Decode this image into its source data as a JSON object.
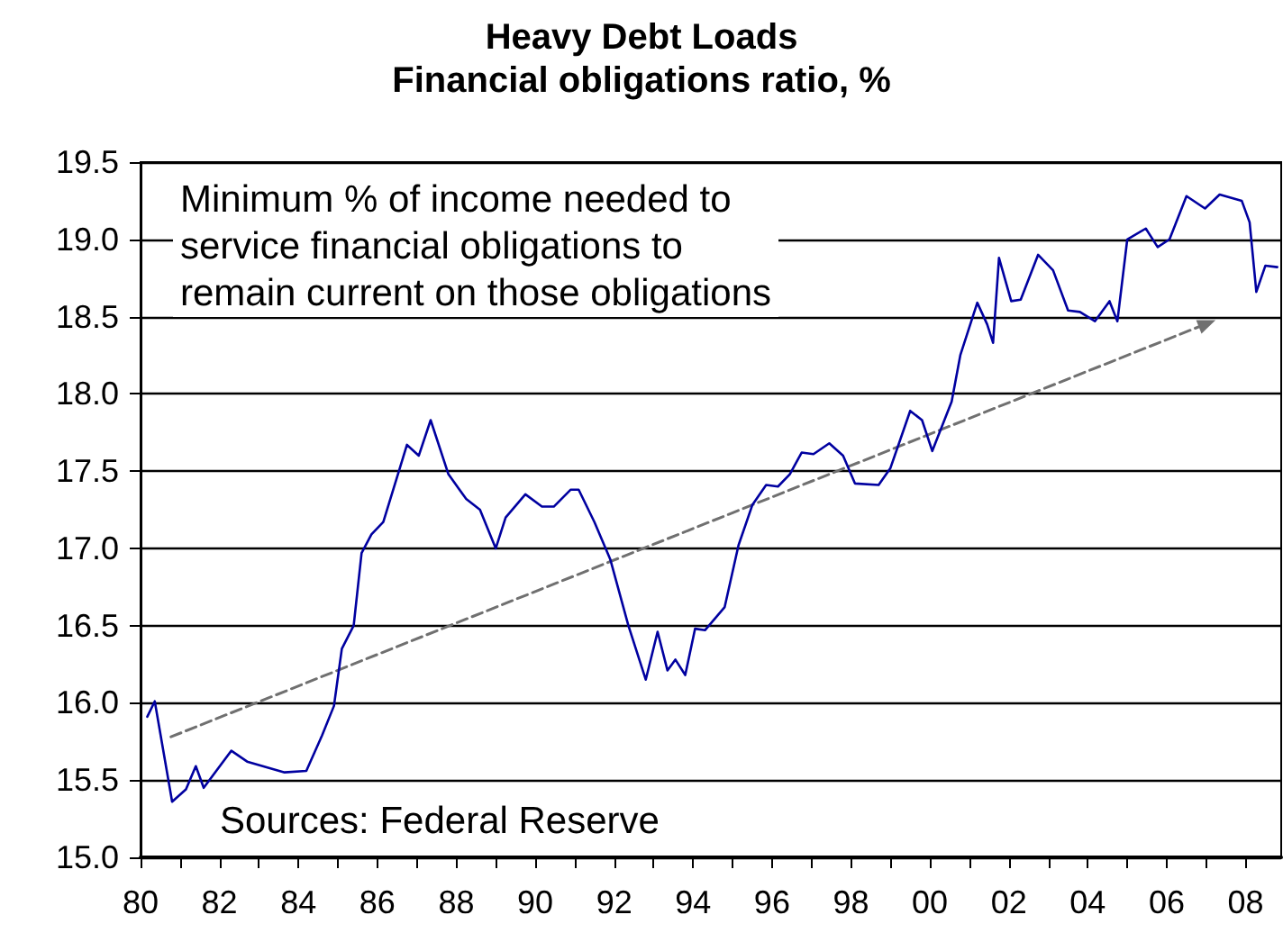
{
  "chart_data": {
    "type": "line",
    "title": "Heavy Debt Loads",
    "subtitle": "Financial obligations ratio, %",
    "annotations": [
      "Minimum % of income needed to\nservice financial obligations to\nremain current on those obligations",
      "Sources: Federal Reserve"
    ],
    "series": [
      {
        "color": "#0000a0",
        "x": [
          1980.17,
          1980.36,
          1980.8,
          1981.15,
          1981.4,
          1981.6,
          1982.3,
          1982.7,
          1983.65,
          1984.2,
          1984.6,
          1984.9,
          1985.1,
          1985.4,
          1985.6,
          1985.85,
          1986.15,
          1986.75,
          1987.05,
          1987.35,
          1987.8,
          1988.25,
          1988.6,
          1989.0,
          1989.25,
          1989.75,
          1990.17,
          1990.47,
          1990.9,
          1991.1,
          1991.5,
          1991.9,
          1992.36,
          1992.8,
          1993.1,
          1993.35,
          1993.55,
          1993.8,
          1994.05,
          1994.3,
          1994.8,
          1995.15,
          1995.5,
          1995.85,
          1996.15,
          1996.45,
          1996.75,
          1997.05,
          1997.45,
          1997.8,
          1998.1,
          1998.7,
          1999.0,
          1999.5,
          1999.8,
          2000.06,
          2000.55,
          2000.77,
          2001.2,
          2001.45,
          2001.6,
          2001.75,
          2002.06,
          2002.3,
          2002.74,
          2003.12,
          2003.5,
          2003.8,
          2004.18,
          2004.55,
          2004.75,
          2005.0,
          2005.47,
          2005.77,
          2006.07,
          2006.5,
          2006.97,
          2007.34,
          2007.9,
          2008.1,
          2008.27,
          2008.5,
          2008.8
        ],
        "values": [
          15.91,
          16.01,
          15.36,
          15.44,
          15.59,
          15.45,
          15.69,
          15.62,
          15.55,
          15.56,
          15.79,
          15.98,
          16.35,
          16.5,
          16.97,
          17.09,
          17.17,
          17.67,
          17.6,
          17.83,
          17.48,
          17.32,
          17.25,
          17.0,
          17.2,
          17.35,
          17.27,
          17.27,
          17.38,
          17.38,
          17.17,
          16.93,
          16.5,
          16.15,
          16.46,
          16.21,
          16.28,
          16.18,
          16.48,
          16.47,
          16.62,
          17.02,
          17.28,
          17.41,
          17.4,
          17.48,
          17.62,
          17.61,
          17.68,
          17.6,
          17.42,
          17.41,
          17.52,
          17.89,
          17.83,
          17.63,
          17.95,
          18.25,
          18.59,
          18.45,
          18.33,
          18.88,
          18.6,
          18.61,
          18.9,
          18.8,
          18.54,
          18.53,
          18.47,
          18.6,
          18.47,
          19.0,
          19.07,
          18.95,
          19.0,
          19.28,
          19.2,
          19.29,
          19.25,
          19.11,
          18.66,
          18.83,
          18.82
        ]
      },
      {
        "color": "#707070",
        "line_style": "dashed",
        "x": [
          1980.77,
          2006.97
        ],
        "values": [
          15.78,
          18.45
        ]
      }
    ],
    "xlim": [
      1980,
      2008.9
    ],
    "xticks": [
      {
        "value": 1980,
        "label": "80"
      },
      {
        "value": 1981,
        "label": null
      },
      {
        "value": 1982,
        "label": "82"
      },
      {
        "value": 1983,
        "label": null
      },
      {
        "value": 1984,
        "label": "84"
      },
      {
        "value": 1985,
        "label": null
      },
      {
        "value": 1986,
        "label": "86"
      },
      {
        "value": 1987,
        "label": null
      },
      {
        "value": 1988,
        "label": "88"
      },
      {
        "value": 1989,
        "label": null
      },
      {
        "value": 1990,
        "label": "90"
      },
      {
        "value": 1991,
        "label": null
      },
      {
        "value": 1992,
        "label": "92"
      },
      {
        "value": 1993,
        "label": null
      },
      {
        "value": 1994,
        "label": "94"
      },
      {
        "value": 1995,
        "label": null
      },
      {
        "value": 1996,
        "label": "96"
      },
      {
        "value": 1997,
        "label": null
      },
      {
        "value": 1998,
        "label": "98"
      },
      {
        "value": 1999,
        "label": null
      },
      {
        "value": 2000,
        "label": "00"
      },
      {
        "value": 2001,
        "label": null
      },
      {
        "value": 2002,
        "label": "02"
      },
      {
        "value": 2003,
        "label": null
      },
      {
        "value": 2004,
        "label": "04"
      },
      {
        "value": 2005,
        "label": null
      },
      {
        "value": 2006,
        "label": "06"
      },
      {
        "value": 2007,
        "label": null
      },
      {
        "value": 2008,
        "label": "08"
      }
    ],
    "ylim": [
      15,
      19.5
    ],
    "yticks": [
      {
        "value": 15,
        "label": "15.0"
      },
      {
        "value": 15.5,
        "label": "15.5"
      },
      {
        "value": 16,
        "label": "16.0"
      },
      {
        "value": 16.5,
        "label": "16.5"
      },
      {
        "value": 17,
        "label": "17.0"
      },
      {
        "value": 17.5,
        "label": "17.5"
      },
      {
        "value": 18,
        "label": "18.0"
      },
      {
        "value": 18.5,
        "label": "18.5"
      },
      {
        "value": 19,
        "label": "19.0"
      },
      {
        "value": 19.5,
        "label": "19.5"
      }
    ],
    "grid": "y"
  }
}
